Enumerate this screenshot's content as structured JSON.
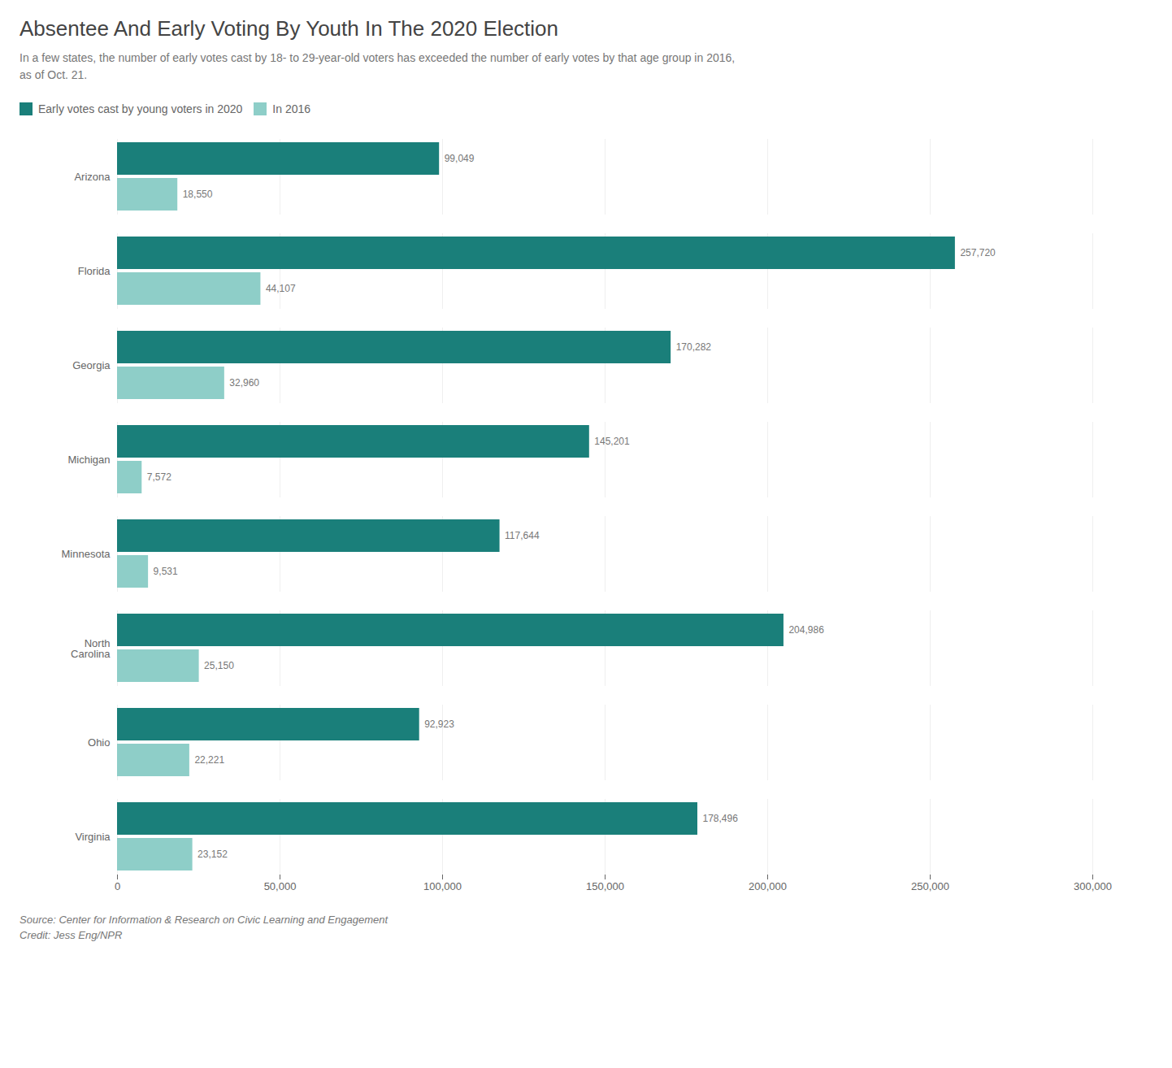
{
  "chart_data": {
    "type": "bar",
    "orientation": "horizontal",
    "title": "Absentee And Early Voting By Youth In The 2020 Election",
    "subtitle": "In a few states, the number of early votes cast by 18- to 29-year-old voters has exceeded the number of early votes by that age group in 2016,\nas of Oct. 21.",
    "categories": [
      "Arizona",
      "Florida",
      "Georgia",
      "Michigan",
      "Minnesota",
      "North\nCarolina",
      "Ohio",
      "Virginia"
    ],
    "series": [
      {
        "name": "Early votes cast by young voters in 2020",
        "color": "#1a7f7a",
        "values": [
          99049,
          257720,
          170282,
          145201,
          117644,
          204986,
          92923,
          178496
        ],
        "value_labels": [
          "99,049",
          "257,720",
          "170,282",
          "145,201",
          "117,644",
          "204,986",
          "92,923",
          "178,496"
        ]
      },
      {
        "name": "In 2016",
        "color": "#8ecec8",
        "values": [
          18550,
          44107,
          32960,
          7572,
          9531,
          25150,
          22221,
          23152
        ],
        "value_labels": [
          "18,550",
          "44,107",
          "32,960",
          "7,572",
          "9,531",
          "25,150",
          "22,221",
          "23,152"
        ]
      }
    ],
    "xlim": [
      0,
      300000
    ],
    "xticks": [
      0,
      {
        "value": 50000,
        "label": "50,000"
      },
      {
        "value": 100000,
        "label": "100,000"
      },
      {
        "value": 150000,
        "label": "150,000"
      },
      {
        "value": 200000,
        "label": "200,000"
      },
      {
        "value": 250000,
        "label": "250,000"
      },
      {
        "value": 300000,
        "label": "300,000"
      }
    ],
    "grid": true,
    "legend": "top",
    "data_labels": true,
    "source": "Source: Center for Information & Research on Civic Learning and Engagement",
    "credit": "Credit: Jess Eng/NPR"
  }
}
